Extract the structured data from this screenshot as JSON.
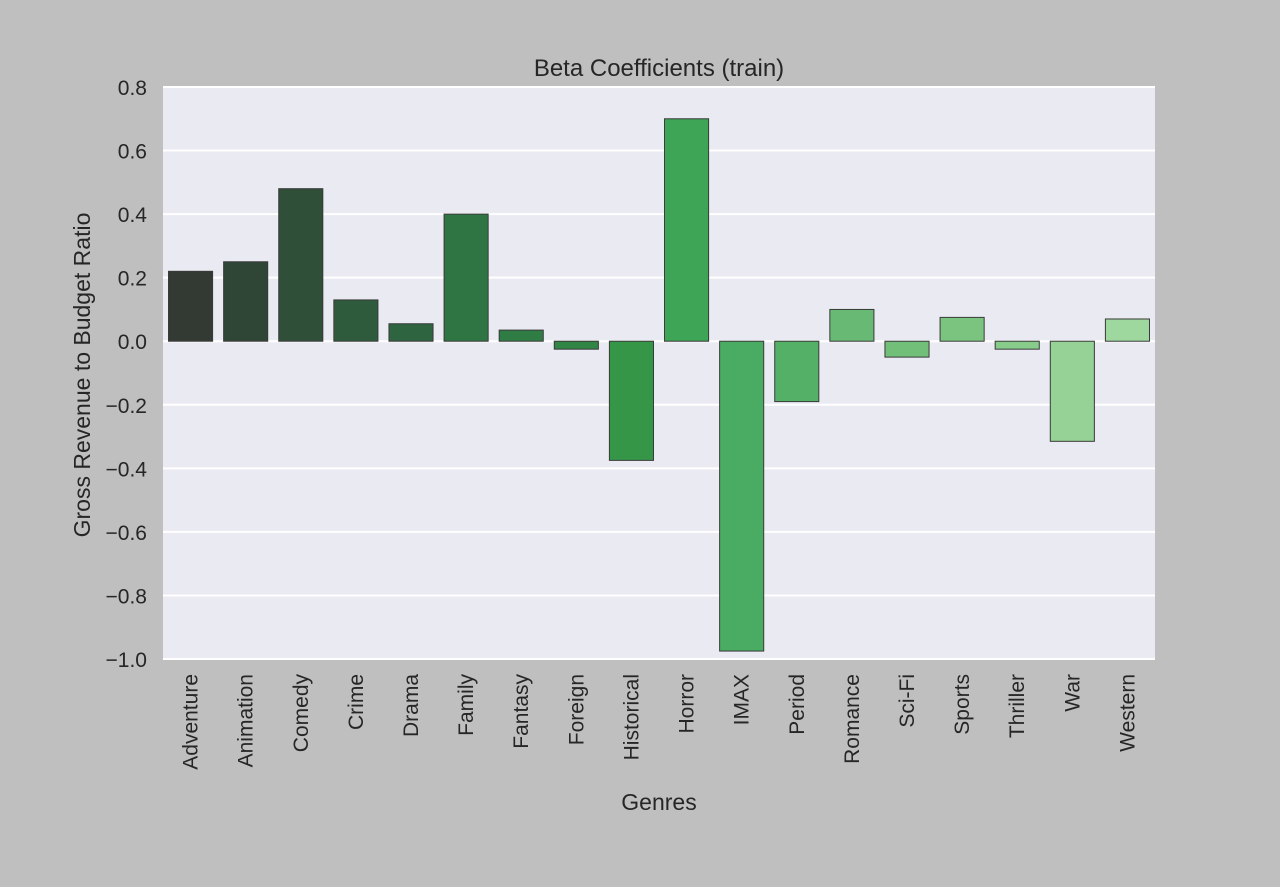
{
  "chart_data": {
    "type": "bar",
    "title": "Beta Coefficients (train)",
    "xlabel": "Genres",
    "ylabel": "Gross Revenue to Budget Ratio",
    "categories": [
      "Adventure",
      "Animation",
      "Comedy",
      "Crime",
      "Drama",
      "Family",
      "Fantasy",
      "Foreign",
      "Historical",
      "Horror",
      "IMAX",
      "Period",
      "Romance",
      "Sci-Fi",
      "Sports",
      "Thriller",
      "War",
      "Western"
    ],
    "values": [
      0.22,
      0.25,
      0.48,
      0.13,
      0.055,
      0.4,
      0.035,
      -0.025,
      -0.375,
      0.7,
      -0.975,
      -0.19,
      0.1,
      -0.05,
      0.075,
      -0.025,
      -0.315,
      0.07
    ],
    "colors": [
      "#323a33",
      "#2f4536",
      "#2f4f39",
      "#2e5b3c",
      "#2e6440",
      "#2f7443",
      "#2f7c45",
      "#318646",
      "#359648",
      "#3ea556",
      "#4aac63",
      "#54b066",
      "#67b974",
      "#72bf7a",
      "#7bc47f",
      "#87cc8a",
      "#96d196",
      "#9fd89e"
    ],
    "ylim": [
      -1.0,
      0.8
    ],
    "yticks": [
      0.8,
      0.6,
      0.4,
      0.2,
      0.0,
      -0.2,
      -0.4,
      -0.6,
      -0.8,
      -1.0
    ],
    "ytick_labels": [
      "0.8",
      "0.6",
      "0.4",
      "0.2",
      "0.0",
      "−0.2",
      "−0.4",
      "−0.6",
      "−0.8",
      "−1.0"
    ],
    "grid": true,
    "plot_background": "#eaeaf2",
    "figure_background": "#bfbfbf"
  }
}
